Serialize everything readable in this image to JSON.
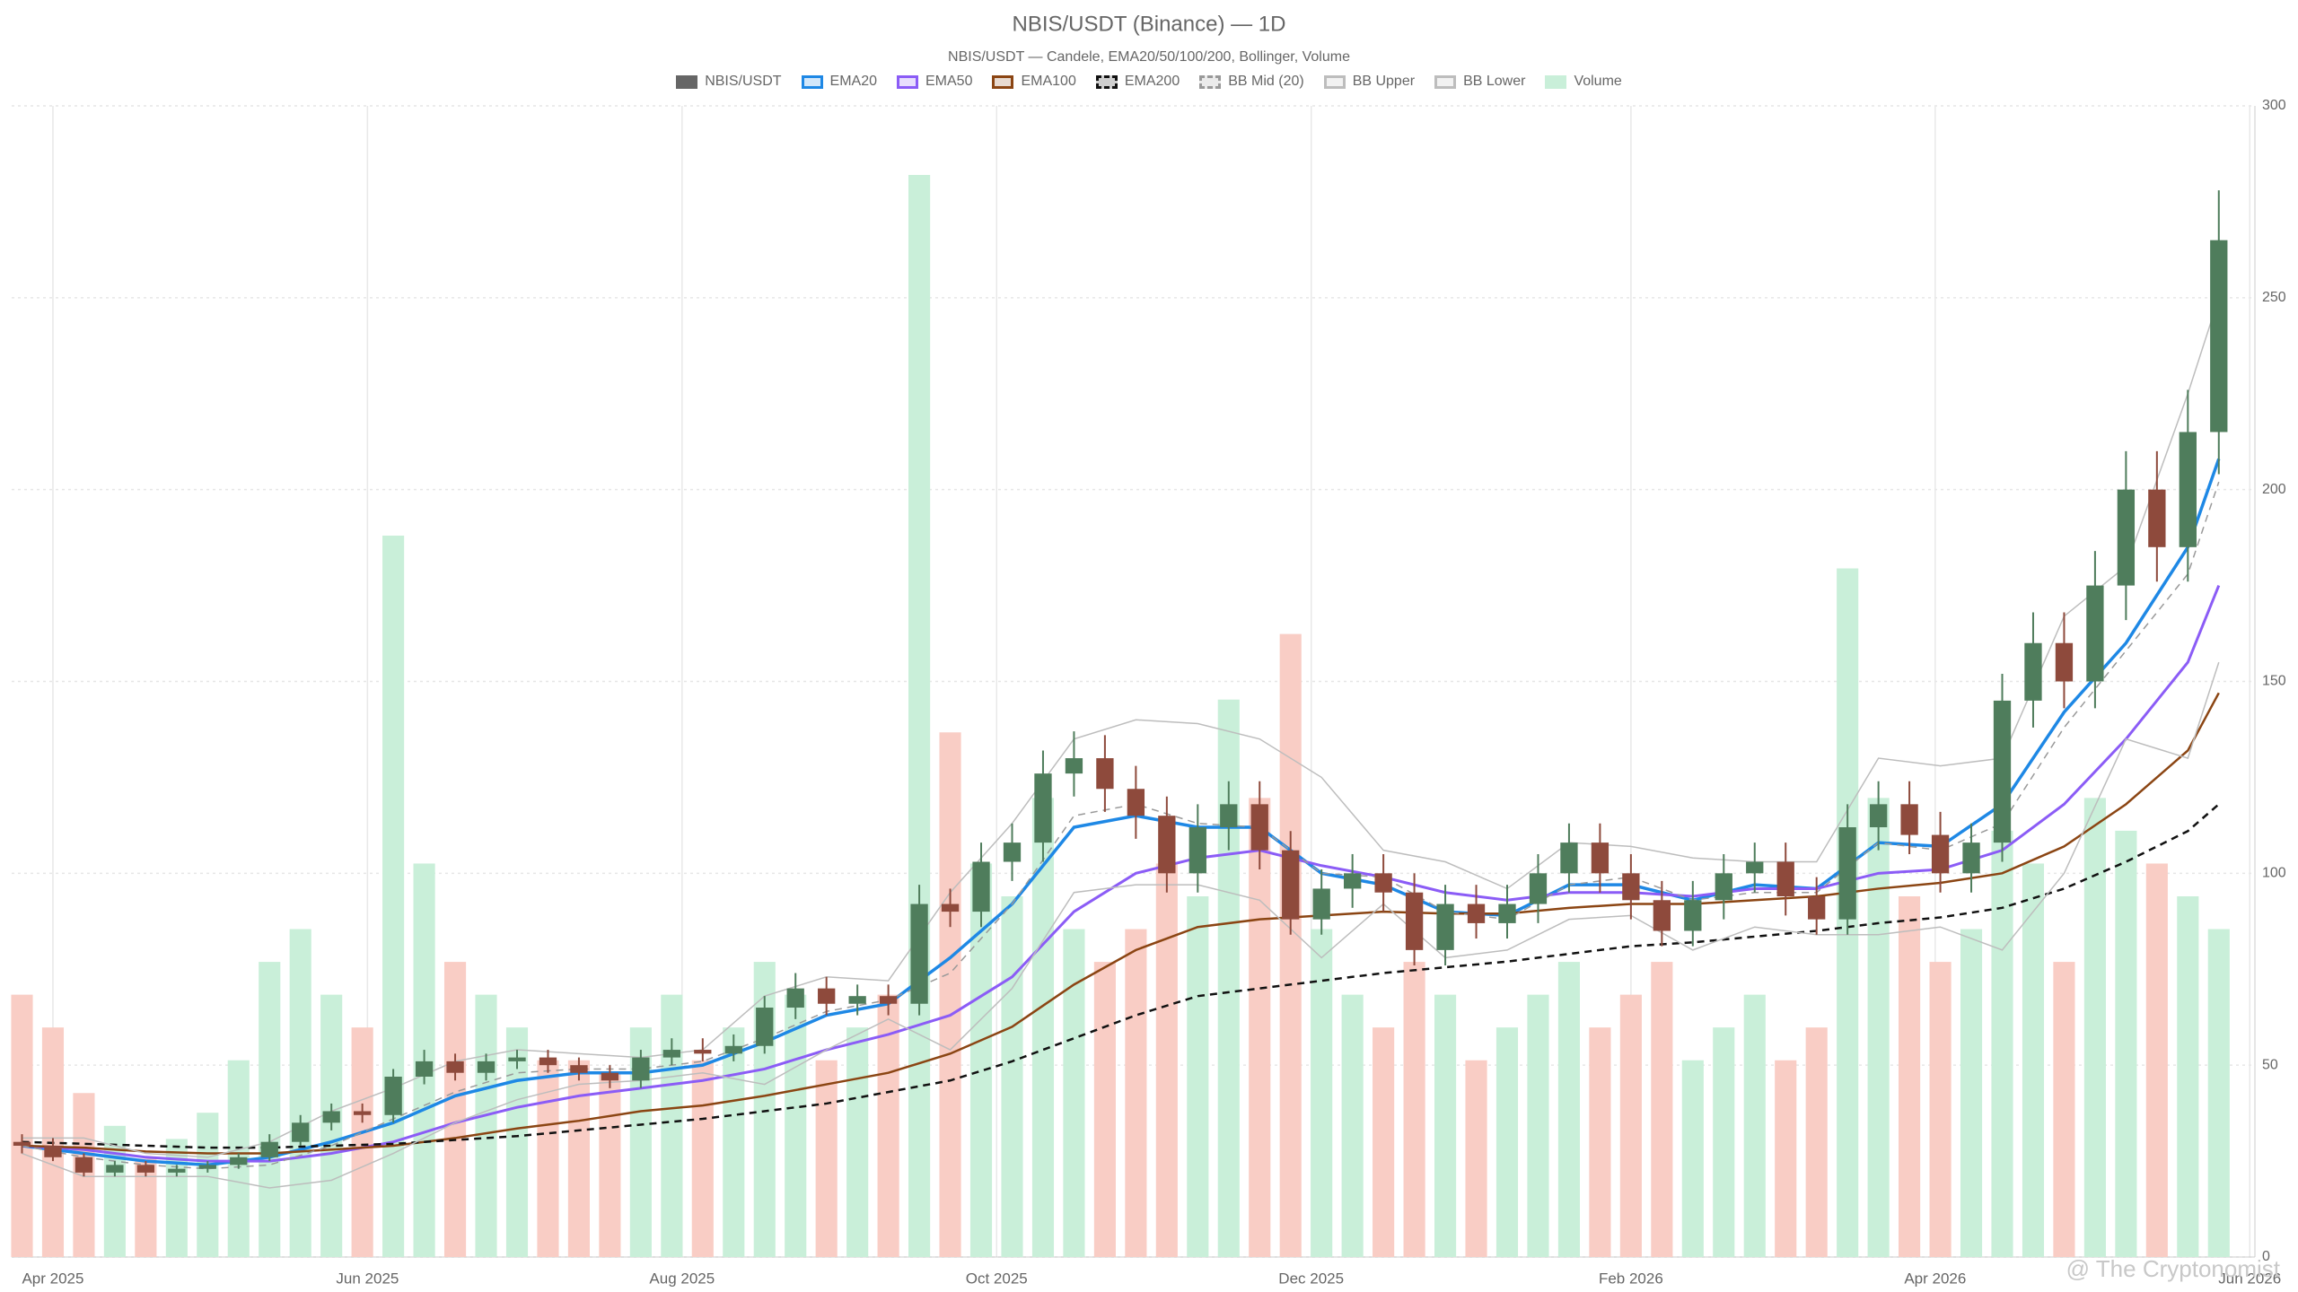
{
  "chart_data": {
    "type": "candlestick",
    "title": "NBIS/USDT (Binance) — 1D",
    "subtitle": "NBIS/USDT — Candele, EMA20/50/100/200, Bollinger, Volume",
    "watermark": "@ The Cryptonomist",
    "candle_name": "NBIS/USDT",
    "candle_legend_color": "#666666",
    "up_color": "#4f7d5c",
    "down_color": "#8e4a3c",
    "volume_name": "Volume",
    "volume_up_color": "#c9efd9",
    "volume_down_color": "#f9cdc5",
    "x": [
      "2025-03-26",
      "2025-04-01",
      "2025-04-07",
      "2025-04-13",
      "2025-04-19",
      "2025-04-25",
      "2025-05-01",
      "2025-05-07",
      "2025-05-13",
      "2025-05-19",
      "2025-05-25",
      "2025-05-31",
      "2025-06-06",
      "2025-06-12",
      "2025-06-18",
      "2025-06-24",
      "2025-06-30",
      "2025-07-06",
      "2025-07-12",
      "2025-07-18",
      "2025-07-24",
      "2025-07-30",
      "2025-08-05",
      "2025-08-11",
      "2025-08-17",
      "2025-08-23",
      "2025-08-29",
      "2025-09-04",
      "2025-09-10",
      "2025-09-16",
      "2025-09-22",
      "2025-09-28",
      "2025-10-04",
      "2025-10-10",
      "2025-10-16",
      "2025-10-22",
      "2025-10-28",
      "2025-11-03",
      "2025-11-09",
      "2025-11-15",
      "2025-11-21",
      "2025-11-27",
      "2025-12-03",
      "2025-12-09",
      "2025-12-15",
      "2025-12-21",
      "2025-12-27",
      "2026-01-02",
      "2026-01-08",
      "2026-01-14",
      "2026-01-20",
      "2026-01-26",
      "2026-02-01",
      "2026-02-07",
      "2026-02-13",
      "2026-02-19",
      "2026-02-25",
      "2026-03-03",
      "2026-03-09",
      "2026-03-15",
      "2026-03-21",
      "2026-03-27",
      "2026-04-02",
      "2026-04-08",
      "2026-04-14",
      "2026-04-20",
      "2026-04-26",
      "2026-05-02",
      "2026-05-08",
      "2026-05-14",
      "2026-05-20",
      "2026-05-26"
    ],
    "open": [
      30,
      29,
      26,
      22,
      24,
      22,
      23,
      24,
      26,
      30,
      35,
      38,
      37,
      47,
      51,
      48,
      51,
      52,
      50,
      48,
      46,
      52,
      54,
      53,
      55,
      65,
      70,
      66,
      68,
      66,
      92,
      90,
      103,
      108,
      126,
      130,
      122,
      115,
      100,
      112,
      118,
      106,
      88,
      96,
      100,
      95,
      80,
      92,
      87,
      92,
      100,
      108,
      100,
      93,
      85,
      93,
      100,
      103,
      94,
      88,
      112,
      118,
      110,
      100,
      108,
      145,
      160,
      150,
      175,
      200,
      185,
      215
    ],
    "high": [
      32,
      31,
      27,
      25,
      25,
      24,
      25,
      27,
      32,
      37,
      40,
      40,
      49,
      54,
      53,
      53,
      54,
      54,
      52,
      50,
      54,
      57,
      57,
      58,
      68,
      74,
      73,
      71,
      71,
      97,
      96,
      108,
      113,
      132,
      137,
      136,
      128,
      120,
      118,
      124,
      124,
      111,
      101,
      105,
      105,
      100,
      97,
      97,
      97,
      105,
      113,
      113,
      105,
      98,
      98,
      105,
      108,
      108,
      99,
      118,
      124,
      124,
      116,
      113,
      152,
      168,
      168,
      184,
      210,
      210,
      226,
      278
    ],
    "low": [
      27,
      25,
      21,
      21,
      21,
      21,
      22,
      23,
      25,
      29,
      33,
      35,
      35,
      45,
      46,
      46,
      49,
      48,
      46,
      44,
      44,
      50,
      51,
      51,
      53,
      62,
      63,
      63,
      63,
      63,
      86,
      86,
      98,
      103,
      120,
      116,
      109,
      95,
      95,
      106,
      101,
      84,
      84,
      91,
      90,
      76,
      76,
      83,
      83,
      87,
      95,
      95,
      88,
      81,
      81,
      88,
      95,
      89,
      84,
      84,
      106,
      105,
      95,
      95,
      103,
      138,
      143,
      143,
      166,
      176,
      176,
      204
    ],
    "close": [
      29,
      26,
      22,
      24,
      22,
      23,
      24,
      26,
      30,
      35,
      38,
      37,
      47,
      51,
      48,
      51,
      52,
      50,
      48,
      46,
      52,
      54,
      53,
      55,
      65,
      70,
      66,
      68,
      66,
      92,
      90,
      103,
      108,
      126,
      130,
      122,
      115,
      100,
      112,
      118,
      106,
      88,
      96,
      100,
      95,
      80,
      92,
      87,
      92,
      100,
      108,
      100,
      93,
      85,
      93,
      100,
      103,
      94,
      88,
      112,
      118,
      110,
      100,
      108,
      145,
      160,
      150,
      175,
      200,
      185,
      215,
      265
    ],
    "volume": [
      40,
      35,
      25,
      20,
      15,
      18,
      22,
      30,
      45,
      50,
      40,
      35,
      110,
      60,
      45,
      40,
      35,
      30,
      30,
      28,
      35,
      40,
      30,
      35,
      45,
      40,
      30,
      35,
      40,
      165,
      80,
      60,
      55,
      70,
      50,
      45,
      50,
      60,
      55,
      85,
      70,
      95,
      50,
      40,
      35,
      45,
      40,
      30,
      35,
      40,
      45,
      35,
      40,
      45,
      30,
      35,
      40,
      30,
      35,
      105,
      70,
      55,
      45,
      50,
      65,
      60,
      45,
      70,
      65,
      60,
      55,
      50
    ],
    "lines": {
      "x": [
        "2025-03-26",
        "2025-04-07",
        "2025-04-19",
        "2025-05-01",
        "2025-05-13",
        "2025-05-25",
        "2025-06-06",
        "2025-06-18",
        "2025-06-30",
        "2025-07-12",
        "2025-07-24",
        "2025-08-05",
        "2025-08-17",
        "2025-08-29",
        "2025-09-10",
        "2025-09-22",
        "2025-10-04",
        "2025-10-16",
        "2025-10-28",
        "2025-11-09",
        "2025-11-21",
        "2025-12-03",
        "2025-12-15",
        "2025-12-27",
        "2026-01-08",
        "2026-01-20",
        "2026-02-01",
        "2026-02-13",
        "2026-02-25",
        "2026-03-09",
        "2026-03-21",
        "2026-04-02",
        "2026-04-14",
        "2026-04-26",
        "2026-05-08",
        "2026-05-20",
        "2026-05-26"
      ],
      "series": [
        {
          "name": "EMA20",
          "color": "#1e88e5",
          "dash": false,
          "width": 3.5,
          "values": [
            29,
            27,
            25,
            24,
            26,
            30,
            35,
            42,
            46,
            48,
            48,
            50,
            56,
            63,
            66,
            78,
            92,
            112,
            115,
            112,
            112,
            100,
            97,
            90,
            89,
            97,
            97,
            93,
            97,
            96,
            108,
            107,
            118,
            142,
            160,
            185,
            208
          ]
        },
        {
          "name": "EMA50",
          "color": "#8b5cf6",
          "dash": false,
          "width": 3,
          "values": [
            29,
            28,
            26,
            25,
            25,
            27,
            30,
            35,
            39,
            42,
            44,
            46,
            49,
            54,
            58,
            63,
            73,
            90,
            100,
            104,
            106,
            102,
            99,
            95,
            93,
            95,
            95,
            94,
            96,
            96,
            100,
            101,
            106,
            118,
            135,
            155,
            175
          ]
        },
        {
          "name": "EMA100",
          "color": "#8b4513",
          "dash": false,
          "width": 2.5,
          "values": [
            29,
            28.5,
            27.5,
            27,
            27,
            28,
            29,
            31,
            33.5,
            35.5,
            38,
            39.5,
            42,
            45,
            48,
            53,
            60,
            71,
            80,
            86,
            88,
            89,
            90,
            89.5,
            89.5,
            91,
            92,
            92,
            93,
            94,
            96,
            97.5,
            100,
            107,
            118,
            132,
            147
          ]
        },
        {
          "name": "EMA200",
          "color": "#111111",
          "dash": true,
          "width": 2.5,
          "values": [
            30,
            29.5,
            29,
            28.5,
            28.5,
            29,
            29.5,
            30.5,
            31.5,
            33,
            34.5,
            36,
            38,
            40,
            43,
            46,
            51,
            57,
            63,
            68,
            70,
            72,
            74,
            75.5,
            77,
            79,
            81,
            82,
            83.5,
            85,
            87,
            88.5,
            91,
            96,
            103,
            111,
            118
          ]
        },
        {
          "name": "BB Mid (20)",
          "color": "#999999",
          "dash": true,
          "width": 1.5,
          "values": [
            29,
            26,
            24,
            23,
            24,
            29,
            36,
            43,
            48,
            49,
            49,
            51,
            57,
            64,
            67,
            74,
            92,
            115,
            118,
            113,
            112,
            100,
            99,
            90,
            88,
            97,
            99,
            93,
            95,
            95,
            108,
            106,
            113,
            138,
            158,
            178,
            202
          ]
        },
        {
          "name": "BB Upper",
          "color": "#bdbdbd",
          "dash": false,
          "width": 1.5,
          "values": [
            31,
            31,
            27,
            26,
            30,
            38,
            44,
            51,
            54,
            53,
            52,
            54,
            68,
            73,
            72,
            95,
            113,
            135,
            140,
            139,
            135,
            125,
            106,
            103,
            96,
            108,
            107,
            104,
            103,
            103,
            130,
            128,
            130,
            167,
            180,
            225,
            250
          ]
        },
        {
          "name": "BB Lower",
          "color": "#bdbdbd",
          "dash": false,
          "width": 1.5,
          "values": [
            27,
            21,
            21,
            21,
            18,
            20,
            27,
            35,
            41,
            45,
            46,
            48,
            45,
            54,
            62,
            54,
            70,
            95,
            97,
            97,
            93,
            78,
            92,
            78,
            80,
            88,
            89,
            80,
            86,
            84,
            84,
            86,
            80,
            100,
            135,
            130,
            155
          ]
        }
      ]
    },
    "xlim": [
      "2025-03-24",
      "2026-06-02"
    ],
    "xticks": [
      {
        "value": "2025-04-01",
        "label": "Apr 2025"
      },
      {
        "value": "2025-06-01",
        "label": "Jun 2025"
      },
      {
        "value": "2025-08-01",
        "label": "Aug 2025"
      },
      {
        "value": "2025-10-01",
        "label": "Oct 2025"
      },
      {
        "value": "2025-12-01",
        "label": "Dec 2025"
      },
      {
        "value": "2026-02-01",
        "label": "Feb 2026"
      },
      {
        "value": "2026-04-01",
        "label": "Apr 2026"
      },
      {
        "value": "2026-06-01",
        "label": "Jun 2026"
      }
    ],
    "ylim": [
      0,
      300
    ],
    "yticks": [
      0,
      50,
      100,
      150,
      200,
      250,
      300
    ],
    "grid": true
  }
}
